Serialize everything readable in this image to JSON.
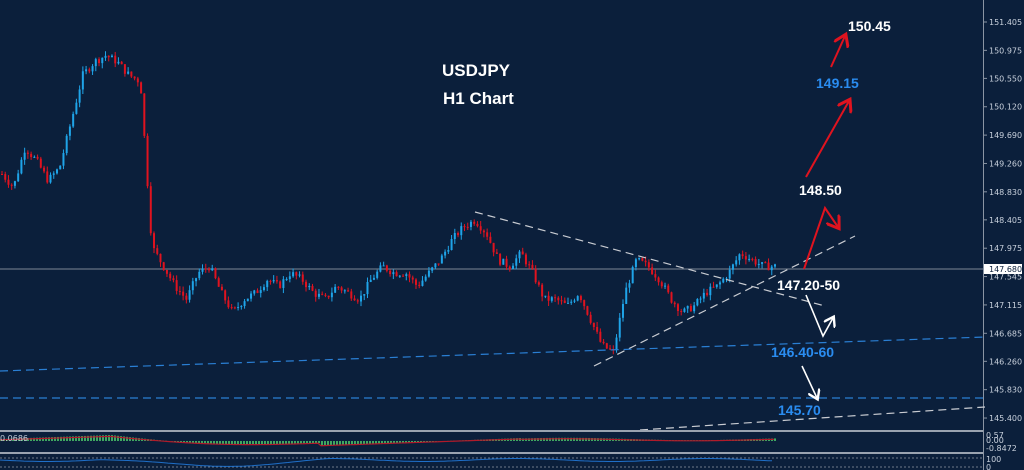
{
  "chart_data": {
    "type": "candlestick",
    "title": "USDJPY",
    "subtitle": "H1 Chart",
    "symbol": "USDJPY",
    "timeframe": "H1",
    "current_price": "147.680",
    "y_axis_ticks": [
      "151.405",
      "150.975",
      "150.550",
      "150.120",
      "149.690",
      "149.260",
      "148.830",
      "148.405",
      "147.975",
      "147.545",
      "147.115",
      "146.685",
      "146.260",
      "145.830",
      "145.400"
    ],
    "ylim": [
      145.2,
      151.6
    ],
    "annotations": [
      {
        "label": "150.45",
        "color": "#ffffff",
        "type": "target"
      },
      {
        "label": "149.15",
        "color": "#2a8cf0",
        "type": "target"
      },
      {
        "label": "148.50",
        "color": "#ffffff",
        "type": "resistance"
      },
      {
        "label": "147.20-50",
        "color": "#ffffff",
        "type": "support"
      },
      {
        "label": "146.40-60",
        "color": "#2a8cf0",
        "type": "support"
      },
      {
        "label": "145.70",
        "color": "#2a8cf0",
        "type": "support"
      }
    ],
    "close_series_approx": [
      149.1,
      148.9,
      149.5,
      149.3,
      149.0,
      149.2,
      149.9,
      150.6,
      150.8,
      150.9,
      150.8,
      150.6,
      150.5,
      148.0,
      147.7,
      147.4,
      147.2,
      147.6,
      147.7,
      147.3,
      147.0,
      147.2,
      147.3,
      147.5,
      147.4,
      147.6,
      147.5,
      147.3,
      147.2,
      147.4,
      147.3,
      147.2,
      147.5,
      147.7,
      147.6,
      147.6,
      147.4,
      147.6,
      147.8,
      148.1,
      148.3,
      148.4,
      148.2,
      147.8,
      147.7,
      147.9,
      147.6,
      147.2,
      147.2,
      147.1,
      147.3,
      146.9,
      146.5,
      146.4,
      147.3,
      147.8,
      147.7,
      147.5,
      147.2,
      147.0,
      147.1,
      147.3,
      147.4,
      147.6,
      147.9,
      147.8,
      147.7,
      147.7
    ],
    "indicators": [
      {
        "name": "MACD",
        "value_labels": [
          "0.57",
          "0.00",
          "-0.8472"
        ],
        "left_label": "0.0686"
      },
      {
        "name": "Oscillator",
        "value_labels": [
          "100",
          "0"
        ]
      }
    ],
    "colors": {
      "background": "#0b1f3b",
      "bull": "#1fa4e8",
      "bear": "#e0131f",
      "trendline": "#c9ccd2",
      "support_line": "#2a7fd4",
      "arrow_up": "#e0131f",
      "arrow_down": "#ffffff"
    }
  },
  "header": {
    "title": "USDJPY",
    "subtitle": "H1 Chart"
  },
  "price_axis": {
    "ticks": [
      "151.405",
      "150.975",
      "150.550",
      "150.120",
      "149.690",
      "149.260",
      "148.830",
      "148.405",
      "147.975",
      "147.545",
      "147.115",
      "146.685",
      "146.260",
      "145.830",
      "145.400"
    ],
    "current": "147.680"
  },
  "annotations": {
    "t1": "150.45",
    "t2": "149.15",
    "r1": "148.50",
    "s1": "147.20-50",
    "s2": "146.40-60",
    "s3": "145.70"
  },
  "macd_panel": {
    "left_value": "0.0686",
    "axis_top": "0.57",
    "axis_mid": "0.00",
    "axis_bottom": "-0.8472"
  },
  "osc_panel": {
    "axis_top": "100",
    "axis_bottom": "0"
  }
}
